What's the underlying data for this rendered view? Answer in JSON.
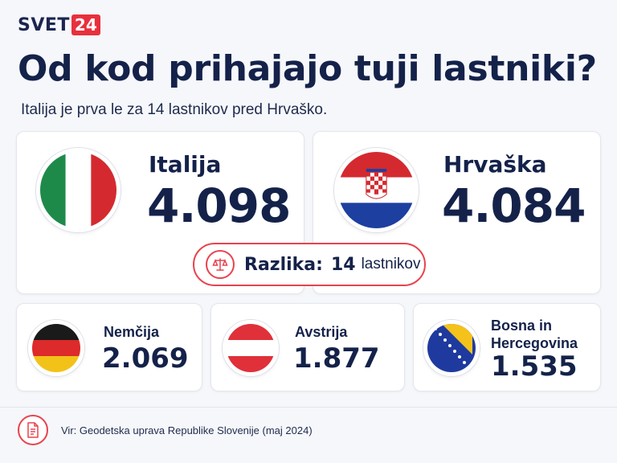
{
  "brand": {
    "name": "SVET",
    "badge": "24",
    "accent": "#e8303d"
  },
  "header": {
    "title": "Od kod prihajajo tuji lastniki?",
    "subtitle": "Italija je prva le za 14 lastnikov pred Hrvaško."
  },
  "top_countries": [
    {
      "name": "Italija",
      "value": "4.098",
      "flag": "italy-flag"
    },
    {
      "name": "Hrvaška",
      "value": "4.084",
      "flag": "croatia-flag"
    }
  ],
  "difference": {
    "label": "Razlika:",
    "number": "14",
    "unit": "lastnikov",
    "icon": "scale-icon"
  },
  "other_countries": [
    {
      "name": "Nemčija",
      "value": "2.069",
      "flag": "germany-flag"
    },
    {
      "name": "Avstrija",
      "value": "1.877",
      "flag": "austria-flag"
    },
    {
      "name_line1": "Bosna in",
      "name_line2": "Hercegovina",
      "value": "1.535",
      "flag": "bosnia-flag"
    }
  ],
  "source": {
    "text": "Vir: Geodetska uprava Republike Slovenije (maj 2024)",
    "icon": "document-icon"
  }
}
